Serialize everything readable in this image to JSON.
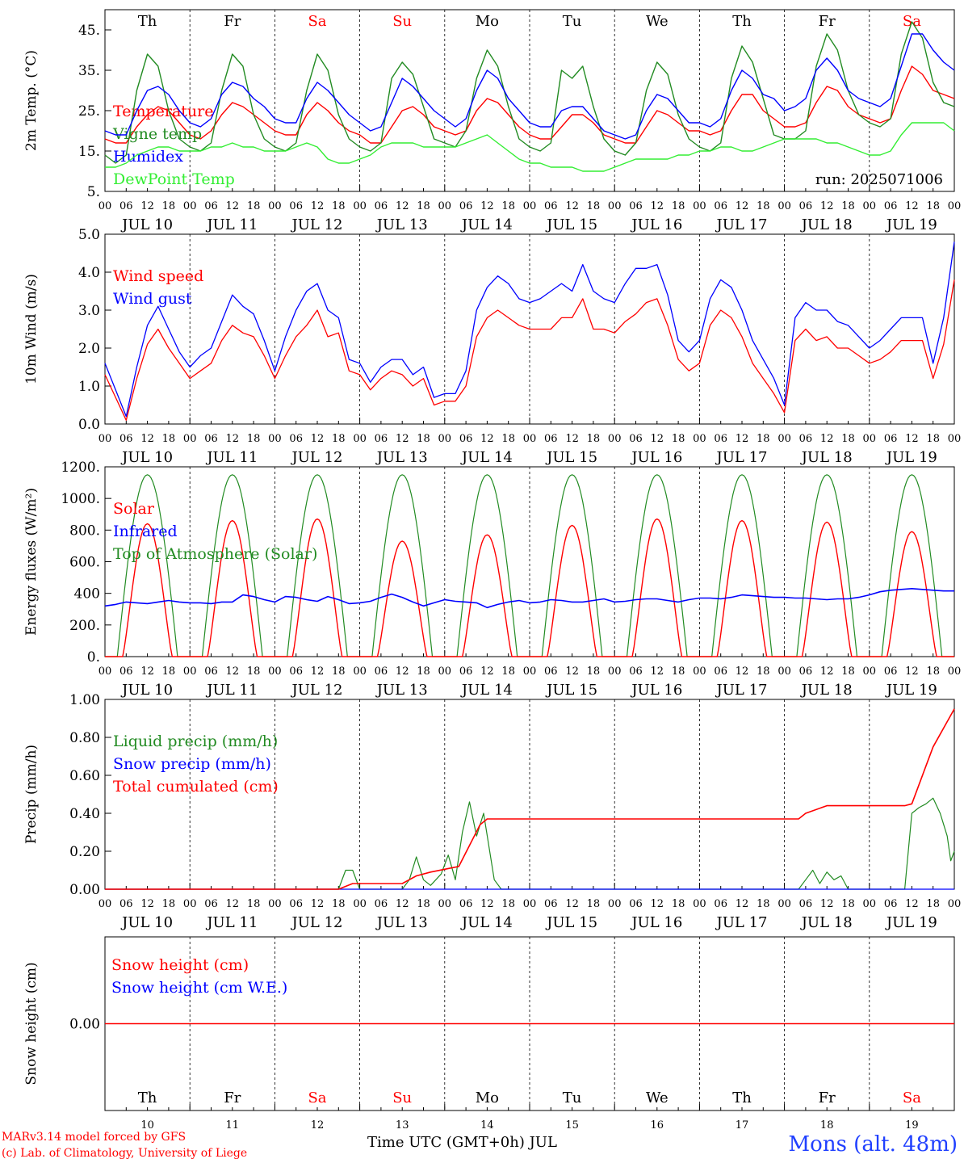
{
  "chart_data": [
    {
      "type": "line",
      "ylabel": "2m Temp. (°C)",
      "ylim": [
        5,
        50
      ],
      "yticks": [
        5,
        15,
        25,
        35,
        45
      ],
      "yticklabels": [
        "5.",
        "15.",
        "25.",
        "35.",
        "45."
      ],
      "run_label": "run: 2025071006",
      "weekday_labels_top": [
        "Th",
        "Fr",
        "Sa",
        "Su",
        "Mo",
        "Tu",
        "We",
        "Th",
        "Fr",
        "Sa"
      ],
      "weekday_colors_top": [
        "#000000",
        "#000000",
        "#ff0000",
        "#ff0000",
        "#000000",
        "#000000",
        "#000000",
        "#000000",
        "#000000",
        "#ff0000"
      ],
      "x_hours": [
        0,
        3,
        6,
        9,
        12,
        15,
        18,
        21,
        24,
        27,
        30,
        33,
        36,
        39,
        42,
        45,
        48,
        51,
        54,
        57,
        60,
        63,
        66,
        69,
        72,
        75,
        78,
        81,
        84,
        87,
        90,
        93,
        96,
        99,
        102,
        105,
        108,
        111,
        114,
        117,
        120,
        123,
        126,
        129,
        132,
        135,
        138,
        141,
        144,
        147,
        150,
        153,
        156,
        159,
        162,
        165,
        168,
        171,
        174,
        177,
        180,
        183,
        186,
        189,
        192,
        195,
        198,
        201,
        204,
        207,
        210,
        213,
        216,
        219,
        222,
        225,
        228,
        231,
        234,
        237,
        240
      ],
      "series": [
        {
          "name": "Temperature",
          "color": "#ff0000",
          "values": [
            18,
            17,
            17,
            21,
            24,
            26,
            25,
            22,
            19,
            18,
            20,
            24,
            27,
            26,
            24,
            22,
            20,
            19,
            19,
            24,
            27,
            25,
            22,
            20,
            19,
            17,
            17,
            21,
            25,
            26,
            24,
            21,
            20,
            19,
            20,
            25,
            28,
            27,
            24,
            21,
            19,
            18,
            18,
            21,
            24,
            24,
            22,
            19,
            18,
            17,
            17,
            21,
            25,
            24,
            22,
            20,
            20,
            19,
            20,
            25,
            29,
            29,
            25,
            23,
            21,
            21,
            22,
            27,
            31,
            30,
            26,
            24,
            23,
            22,
            23,
            30,
            36,
            34,
            30,
            29,
            28
          ]
        },
        {
          "name": "Vigne temp",
          "color": "#228b22",
          "values": [
            14,
            12,
            14,
            30,
            39,
            36,
            25,
            18,
            16,
            15,
            17,
            30,
            39,
            36,
            24,
            18,
            16,
            15,
            17,
            30,
            39,
            35,
            24,
            18,
            16,
            15,
            17,
            33,
            37,
            34,
            26,
            18,
            17,
            16,
            20,
            33,
            40,
            36,
            26,
            18,
            16,
            15,
            17,
            35,
            33,
            36,
            26,
            18,
            15,
            14,
            17,
            30,
            37,
            34,
            24,
            18,
            16,
            15,
            17,
            33,
            41,
            37,
            28,
            19,
            18,
            18,
            20,
            36,
            44,
            40,
            30,
            24,
            22,
            21,
            23,
            39,
            47,
            43,
            32,
            27,
            26
          ]
        },
        {
          "name": "Humidex",
          "color": "#0000ff",
          "values": [
            20,
            19,
            19,
            25,
            30,
            31,
            29,
            25,
            22,
            21,
            23,
            29,
            32,
            31,
            28,
            26,
            23,
            22,
            22,
            28,
            32,
            30,
            27,
            24,
            22,
            20,
            21,
            27,
            33,
            31,
            28,
            25,
            23,
            21,
            23,
            30,
            35,
            33,
            28,
            25,
            22,
            21,
            21,
            25,
            26,
            26,
            23,
            20,
            19,
            18,
            19,
            25,
            29,
            28,
            25,
            22,
            22,
            21,
            23,
            30,
            35,
            33,
            29,
            28,
            25,
            26,
            28,
            35,
            38,
            35,
            30,
            28,
            27,
            26,
            28,
            36,
            44,
            44,
            40,
            37,
            35
          ]
        },
        {
          "name": "DewPoint Temp",
          "color": "#33ee33",
          "values": [
            11,
            11,
            12,
            14,
            15,
            16,
            16,
            15,
            15,
            15,
            16,
            16,
            17,
            16,
            16,
            15,
            15,
            15,
            16,
            17,
            16,
            13,
            12,
            12,
            13,
            14,
            16,
            17,
            17,
            17,
            16,
            16,
            16,
            16,
            17,
            18,
            19,
            17,
            15,
            13,
            12,
            12,
            11,
            11,
            11,
            10,
            10,
            10,
            11,
            12,
            13,
            13,
            13,
            13,
            14,
            14,
            15,
            15,
            16,
            16,
            15,
            15,
            16,
            17,
            18,
            18,
            18,
            18,
            17,
            17,
            16,
            15,
            14,
            14,
            15,
            19,
            22,
            22,
            22,
            22,
            20
          ]
        }
      ]
    },
    {
      "type": "line",
      "ylabel": "10m Wind (m/s)",
      "ylim": [
        0,
        5
      ],
      "yticks": [
        0,
        1,
        2,
        3,
        4,
        5
      ],
      "yticklabels": [
        "0.0",
        "1.0",
        "2.0",
        "3.0",
        "4.0",
        "5.0"
      ],
      "x_hours": [
        0,
        3,
        6,
        9,
        12,
        15,
        18,
        21,
        24,
        27,
        30,
        33,
        36,
        39,
        42,
        45,
        48,
        51,
        54,
        57,
        60,
        63,
        66,
        69,
        72,
        75,
        78,
        81,
        84,
        87,
        90,
        93,
        96,
        99,
        102,
        105,
        108,
        111,
        114,
        117,
        120,
        123,
        126,
        129,
        132,
        135,
        138,
        141,
        144,
        147,
        150,
        153,
        156,
        159,
        162,
        165,
        168,
        171,
        174,
        177,
        180,
        183,
        186,
        189,
        192,
        195,
        198,
        201,
        204,
        207,
        210,
        213,
        216,
        219,
        222,
        225,
        228,
        231,
        234,
        237,
        240
      ],
      "series": [
        {
          "name": "Wind speed",
          "color": "#ff0000",
          "values": [
            1.3,
            0.7,
            0.1,
            1.2,
            2.1,
            2.5,
            2.0,
            1.6,
            1.2,
            1.4,
            1.6,
            2.2,
            2.6,
            2.4,
            2.3,
            1.8,
            1.2,
            1.8,
            2.3,
            2.6,
            3.0,
            2.3,
            2.4,
            1.4,
            1.3,
            0.9,
            1.2,
            1.4,
            1.3,
            1.0,
            1.2,
            0.5,
            0.6,
            0.6,
            1.0,
            2.3,
            2.8,
            3.0,
            2.8,
            2.6,
            2.5,
            2.5,
            2.5,
            2.8,
            2.8,
            3.3,
            2.5,
            2.5,
            2.4,
            2.7,
            2.9,
            3.2,
            3.3,
            2.6,
            1.7,
            1.4,
            1.6,
            2.6,
            3.0,
            2.8,
            2.3,
            1.6,
            1.2,
            0.8,
            0.3,
            2.2,
            2.5,
            2.2,
            2.3,
            2.0,
            2.0,
            1.8,
            1.6,
            1.7,
            1.9,
            2.2,
            2.2,
            2.2,
            1.2,
            2.1,
            3.8
          ]
        },
        {
          "name": "Wind gust",
          "color": "#0000ff",
          "values": [
            1.6,
            0.9,
            0.2,
            1.5,
            2.6,
            3.1,
            2.5,
            1.9,
            1.5,
            1.8,
            2.0,
            2.7,
            3.4,
            3.1,
            2.9,
            2.2,
            1.4,
            2.3,
            3.0,
            3.5,
            3.7,
            3.0,
            2.8,
            1.7,
            1.6,
            1.1,
            1.5,
            1.7,
            1.7,
            1.3,
            1.5,
            0.7,
            0.8,
            0.8,
            1.4,
            3.0,
            3.6,
            3.9,
            3.7,
            3.3,
            3.2,
            3.3,
            3.5,
            3.7,
            3.5,
            4.2,
            3.5,
            3.3,
            3.2,
            3.7,
            4.1,
            4.1,
            4.2,
            3.4,
            2.2,
            1.9,
            2.2,
            3.3,
            3.8,
            3.6,
            3.0,
            2.2,
            1.7,
            1.2,
            0.5,
            2.8,
            3.2,
            3.0,
            3.0,
            2.7,
            2.6,
            2.3,
            2.0,
            2.2,
            2.5,
            2.8,
            2.8,
            2.8,
            1.6,
            2.8,
            4.8
          ]
        }
      ]
    },
    {
      "type": "line",
      "ylabel": "Energy fluxes (W/m²)",
      "ylim": [
        0,
        1200
      ],
      "yticks": [
        0,
        200,
        400,
        600,
        800,
        1000,
        1200
      ],
      "yticklabels": [
        "0.",
        "200.",
        "400",
        "600.",
        "800.",
        "1000.",
        "1200."
      ],
      "days_solar_peak": [
        840,
        860,
        870,
        730,
        770,
        830,
        870,
        860,
        850,
        790
      ],
      "infrared": [
        320,
        330,
        345,
        340,
        335,
        345,
        355,
        345,
        340,
        340,
        335,
        345,
        345,
        390,
        380,
        360,
        345,
        380,
        375,
        360,
        350,
        380,
        360,
        335,
        340,
        350,
        375,
        395,
        375,
        345,
        320,
        340,
        360,
        350,
        345,
        340,
        310,
        330,
        345,
        355,
        340,
        345,
        360,
        355,
        345,
        345,
        355,
        365,
        345,
        350,
        360,
        365,
        365,
        355,
        345,
        360,
        370,
        370,
        365,
        375,
        390,
        385,
        380,
        375,
        375,
        370,
        370,
        365,
        360,
        365,
        365,
        375,
        390,
        410,
        420,
        425,
        430,
        425,
        420,
        415,
        415
      ],
      "series_names": [
        "Solar",
        "Infrared",
        "Top of Atmosphere (Solar)"
      ],
      "series_colors": [
        "#ff0000",
        "#0000ff",
        "#228b22"
      ],
      "toa_peak": 1150
    },
    {
      "type": "line",
      "ylabel": "Precip (mm/h)",
      "ylim": [
        0,
        1
      ],
      "yticks": [
        0,
        0.2,
        0.4,
        0.6,
        0.8,
        1.0
      ],
      "yticklabels": [
        "0.00",
        "0.20",
        "0.40",
        "0.60",
        "0.80",
        "1.00"
      ],
      "liquid_points": [
        [
          0,
          0
        ],
        [
          66,
          0
        ],
        [
          68,
          0.1
        ],
        [
          70,
          0.1
        ],
        [
          72,
          0
        ],
        [
          84,
          0
        ],
        [
          86,
          0.05
        ],
        [
          88,
          0.17
        ],
        [
          90,
          0.05
        ],
        [
          92,
          0.02
        ],
        [
          95,
          0.08
        ],
        [
          97,
          0.18
        ],
        [
          99,
          0.05
        ],
        [
          101,
          0.3
        ],
        [
          103,
          0.46
        ],
        [
          105,
          0.28
        ],
        [
          107,
          0.4
        ],
        [
          110,
          0.05
        ],
        [
          112,
          0
        ],
        [
          196,
          0
        ],
        [
          198,
          0.05
        ],
        [
          200,
          0.1
        ],
        [
          202,
          0.03
        ],
        [
          204,
          0.09
        ],
        [
          206,
          0.05
        ],
        [
          208,
          0.07
        ],
        [
          210,
          0
        ],
        [
          226,
          0
        ],
        [
          228,
          0.4
        ],
        [
          230,
          0.43
        ],
        [
          232,
          0.45
        ],
        [
          234,
          0.48
        ],
        [
          236,
          0.4
        ],
        [
          238,
          0.28
        ],
        [
          239,
          0.15
        ],
        [
          240,
          0.2
        ]
      ],
      "cumulated_points": [
        [
          0,
          0
        ],
        [
          66,
          0
        ],
        [
          70,
          0.03
        ],
        [
          84,
          0.03
        ],
        [
          88,
          0.07
        ],
        [
          92,
          0.09
        ],
        [
          100,
          0.12
        ],
        [
          106,
          0.34
        ],
        [
          108,
          0.37
        ],
        [
          196,
          0.37
        ],
        [
          198,
          0.4
        ],
        [
          204,
          0.44
        ],
        [
          226,
          0.44
        ],
        [
          228,
          0.45
        ],
        [
          234,
          0.75
        ],
        [
          240,
          0.95
        ]
      ],
      "series_names": [
        "Liquid precip (mm/h)",
        "Snow precip (mm/h)",
        "Total cumulated (cm)"
      ],
      "series_colors": [
        "#228b22",
        "#0000ff",
        "#ff0000"
      ]
    },
    {
      "type": "line",
      "ylabel": "Snow height (cm)",
      "yticks": [
        0
      ],
      "yticklabels": [
        "0.00"
      ],
      "series_names": [
        "Snow height (cm)",
        "Snow height (cm W.E.)"
      ],
      "series_colors": [
        "#ff0000",
        "#0000ff"
      ],
      "values": [
        0,
        0
      ],
      "weekday_labels_bottom": [
        "Th",
        "Fr",
        "Sa",
        "Su",
        "Mo",
        "Tu",
        "We",
        "Th",
        "Fr",
        "Sa"
      ],
      "weekday_colors_bottom": [
        "#000000",
        "#000000",
        "#ff0000",
        "#ff0000",
        "#000000",
        "#000000",
        "#000000",
        "#000000",
        "#000000",
        "#ff0000"
      ],
      "day_numbers": [
        "10",
        "11",
        "12",
        "13",
        "14",
        "15",
        "16",
        "17",
        "18",
        "19"
      ]
    }
  ],
  "x_hour_ticks": [
    "00",
    "06",
    "12",
    "18"
  ],
  "x_hour_ticks_last": "00",
  "x_date_labels": [
    "JUL 10",
    "JUL 11",
    "JUL 12",
    "JUL 13",
    "JUL 14",
    "JUL 15",
    "JUL 16",
    "JUL 17",
    "JUL 18",
    "JUL 19"
  ],
  "footer": {
    "credit_line1": "MARv3.14 model forced by GFS",
    "credit_line2": "(c) Lab. of Climatology, University of Liege",
    "xlabel": "Time UTC (GMT+0h) JUL",
    "station": "Mons (alt. 48m)"
  }
}
